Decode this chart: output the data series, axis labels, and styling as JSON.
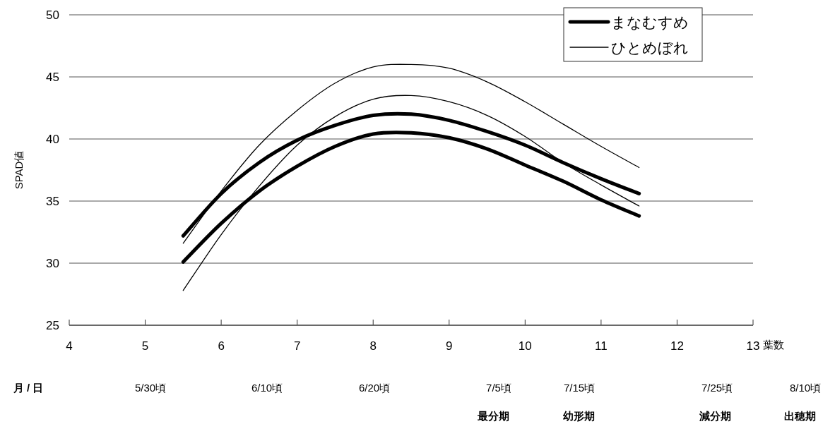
{
  "chart_data": {
    "type": "line",
    "ylabel": "SPAD値",
    "xlabel": "葉数",
    "x": [
      5.5,
      6,
      6.5,
      7,
      7.5,
      8,
      8.5,
      9,
      9.5,
      10,
      10.5,
      11,
      11.5
    ],
    "series": [
      {
        "name": "まなむすめ",
        "color": "#000000",
        "values": [
          32.2,
          35.6,
          38.1,
          39.9,
          41.1,
          41.9,
          42.0,
          41.5,
          40.6,
          39.5,
          38.1,
          36.8,
          35.6
        ]
      },
      {
        "color": "#000000",
        "values": [
          30.1,
          33.2,
          35.8,
          37.8,
          39.4,
          40.4,
          40.5,
          40.1,
          39.2,
          37.9,
          36.6,
          35.1,
          33.8
        ]
      },
      {
        "name": "ひとめぼれ",
        "color": "#000000",
        "values": [
          31.6,
          35.8,
          39.5,
          42.3,
          44.5,
          45.8,
          46.0,
          45.7,
          44.6,
          43.0,
          41.2,
          39.4,
          37.7
        ]
      },
      {
        "color": "#000000",
        "values": [
          27.8,
          32.3,
          36.2,
          39.5,
          41.8,
          43.2,
          43.5,
          43.0,
          41.9,
          40.2,
          38.1,
          36.3,
          34.6
        ]
      }
    ],
    "xlim": [
      4,
      13
    ],
    "xticks": [
      4,
      5,
      6,
      7,
      8,
      9,
      10,
      11,
      12,
      13
    ],
    "ylim": [
      25,
      50
    ],
    "yticks": [
      25,
      30,
      35,
      40,
      45,
      50
    ],
    "grid": "y",
    "legend": "top right",
    "marker": "none",
    "line_style": "solid",
    "annotations": [
      "月 / 日",
      "5/30頃",
      "6/10頃",
      "6/20頃",
      "7/5頃",
      "7/15頃",
      "7/25頃",
      "8/10頃",
      "最分期",
      "幼形期",
      "減分期",
      "出穂期"
    ]
  }
}
